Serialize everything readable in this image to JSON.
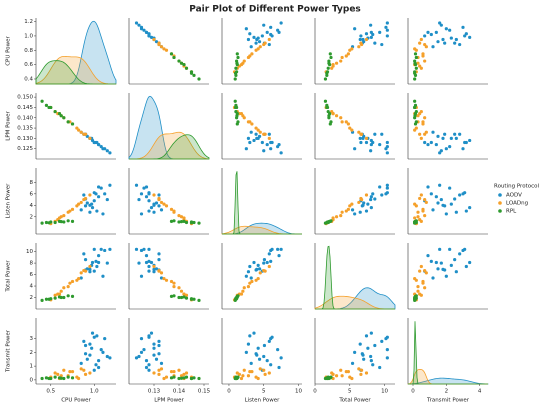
{
  "chart_data": {
    "type": "pairplot",
    "title": "Pair Plot of Different Power Types",
    "legend_title": "Routing Protocol",
    "legend_position": "right",
    "variables": [
      {
        "name": "CPU Power",
        "lim": [
          0.33,
          1.25
        ],
        "xticks": [
          0.5,
          {
            "value": 1.0,
            "label": "1.0"
          }
        ],
        "yticks": [
          0.4,
          0.6,
          0.8,
          {
            "value": 1.0,
            "label": "1.0"
          },
          1.2
        ]
      },
      {
        "name": "LPM Power",
        "lim": [
          0.12,
          0.152
        ],
        "xticks": [
          0.13,
          0.14,
          0.15
        ],
        "yticks": [
          0.125,
          {
            "value": 0.13,
            "label": "0.130"
          },
          0.135,
          {
            "value": 0.14,
            "label": "0.140"
          },
          0.145,
          {
            "value": 0.15,
            "label": "0.150"
          }
        ]
      },
      {
        "name": "Listen Power",
        "lim": [
          -1,
          10.5
        ],
        "xticks": [
          0,
          5,
          10
        ],
        "yticks": [
          2,
          4,
          6,
          8
        ]
      },
      {
        "name": "Total Power",
        "lim": [
          0,
          11.5
        ],
        "xticks": [
          0,
          5,
          10
        ],
        "yticks": [
          2,
          4,
          6,
          8,
          10
        ]
      },
      {
        "name": "Transmit Power",
        "lim": [
          -0.3,
          4.5
        ],
        "xticks": [
          0,
          2,
          4
        ],
        "yticks": [
          0,
          1,
          2,
          3
        ]
      }
    ],
    "series": [
      {
        "name": "AODV",
        "color": "#1f8fc7",
        "values": [
          [
            0.85,
            0.9,
            0.95,
            1.0,
            1.05,
            1.1,
            0.88,
            0.92,
            0.98,
            1.02,
            1.08,
            1.15,
            0.95,
            1.0,
            1.12,
            0.9,
            1.05,
            0.97,
            1.18,
            1.03
          ],
          [
            0.133,
            0.132,
            0.13,
            0.128,
            0.127,
            0.125,
            0.132,
            0.131,
            0.129,
            0.128,
            0.126,
            0.124,
            0.13,
            0.128,
            0.125,
            0.132,
            0.127,
            0.13,
            0.123,
            0.128
          ],
          [
            3.2,
            5.1,
            4.0,
            6.2,
            7.2,
            2.5,
            5.8,
            4.4,
            3.6,
            6.0,
            7.0,
            5.0,
            2.8,
            4.8,
            6.0,
            3.9,
            5.5,
            4.2,
            7.5,
            3.0
          ],
          [
            5.4,
            8.6,
            6.9,
            10.4,
            9.3,
            5.7,
            9.6,
            7.0,
            8.1,
            8.3,
            10.4,
            8.0,
            6.5,
            6.6,
            10.2,
            6.8,
            8.1,
            7.6,
            10.4,
            7.4
          ],
          [
            1.2,
            2.5,
            1.8,
            3.1,
            0.9,
            2.0,
            2.8,
            1.5,
            3.4,
            1.1,
            2.2,
            1.7,
            2.6,
            0.7,
            3.0,
            1.9,
            1.4,
            2.3,
            1.6,
            3.2
          ]
        ]
      },
      {
        "name": "LOADng",
        "color": "#f5a02a",
        "values": [
          [
            0.5,
            0.55,
            0.6,
            0.65,
            0.7,
            0.75,
            0.8,
            0.85,
            0.9,
            0.95,
            0.62,
            0.72,
            0.82,
            0.58,
            0.88
          ],
          [
            0.145,
            0.143,
            0.142,
            0.14,
            0.138,
            0.137,
            0.135,
            0.133,
            0.132,
            0.13,
            0.141,
            0.138,
            0.134,
            0.142,
            0.132
          ],
          [
            0.8,
            1.2,
            1.8,
            2.2,
            2.8,
            3.3,
            3.9,
            4.5,
            5.2,
            5.8,
            2.0,
            3.0,
            4.2,
            1.5,
            5.0
          ],
          [
            1.6,
            2.4,
            2.6,
            3.7,
            3.9,
            4.8,
            5.0,
            6.3,
            6.6,
            7.4,
            3.1,
            4.5,
            5.3,
            2.6,
            6.7
          ],
          [
            0.2,
            0.5,
            0.1,
            0.7,
            0.3,
            0.6,
            0.2,
            0.8,
            0.4,
            0.5,
            0.3,
            0.6,
            0.1,
            0.4,
            0.7
          ]
        ]
      },
      {
        "name": "RPL",
        "color": "#2e9a2e",
        "values": [
          [
            0.4,
            0.45,
            0.5,
            0.55,
            0.6,
            0.65,
            0.7,
            0.75,
            0.48,
            0.62
          ],
          [
            0.148,
            0.146,
            0.145,
            0.143,
            0.142,
            0.14,
            0.138,
            0.137,
            0.145,
            0.141
          ],
          [
            0.9,
            1.0,
            1.1,
            1.0,
            1.2,
            1.1,
            1.3,
            1.2,
            0.95,
            1.15
          ],
          [
            1.5,
            1.7,
            1.8,
            1.9,
            2.1,
            2.0,
            2.3,
            2.2,
            1.7,
            2.0
          ],
          [
            0.1,
            0.15,
            0.1,
            0.2,
            0.15,
            0.1,
            0.2,
            0.15,
            0.1,
            0.12
          ]
        ]
      }
    ]
  }
}
